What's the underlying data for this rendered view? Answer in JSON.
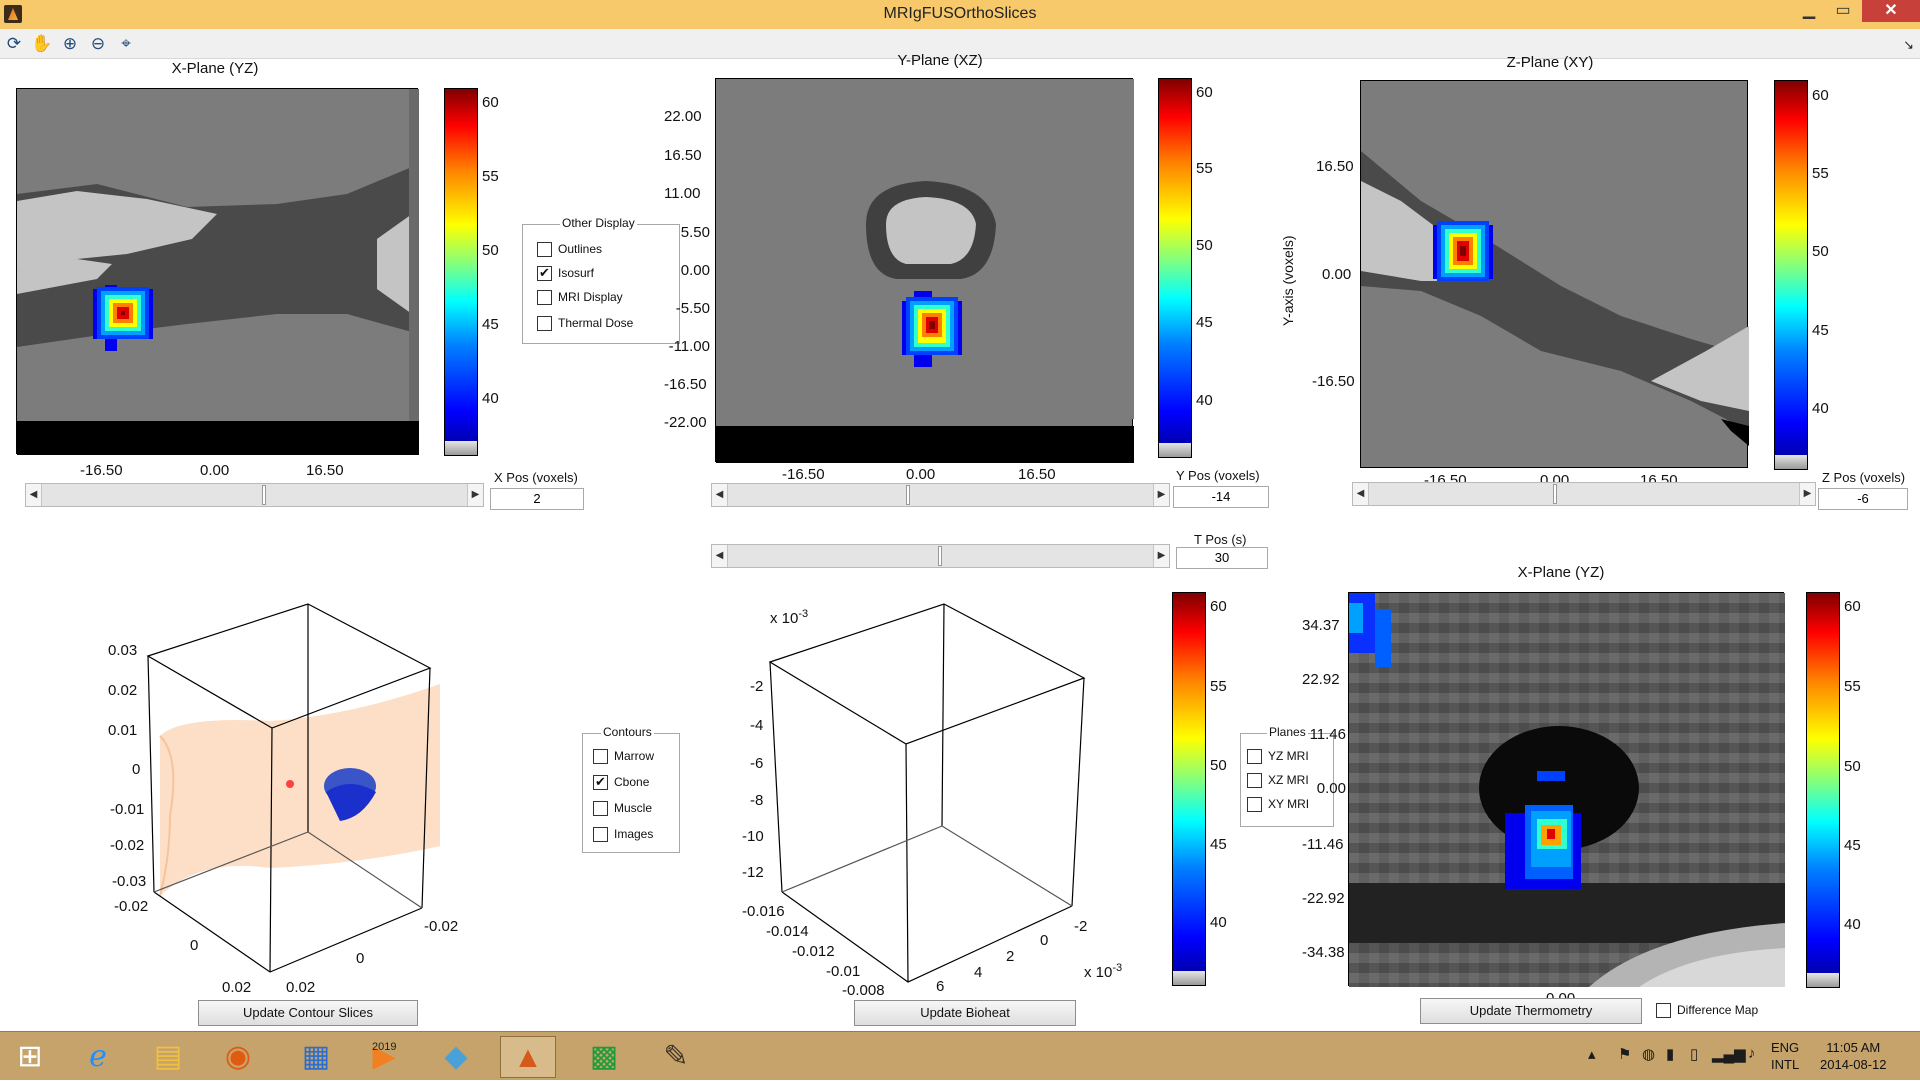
{
  "window": {
    "title": "MRIgFUSOrthoSlices",
    "min_label": "▁",
    "max_label": "▭",
    "close_label": "✕"
  },
  "toolbar": {
    "tools": [
      "rotate-3d-icon",
      "pan-hand-icon",
      "zoom-in-icon",
      "zoom-out-icon",
      "data-cursor-icon"
    ],
    "dock_label": "↘"
  },
  "x_plane": {
    "title": "X-Plane  (YZ)",
    "xticks": [
      "-16.50",
      "0.00",
      "16.50"
    ],
    "colorbar_ticks": [
      "60",
      "55",
      "50",
      "45",
      "40"
    ],
    "pos_label": "X Pos (voxels)",
    "pos_value": "2"
  },
  "y_plane": {
    "title": "Y-Plane  (XZ)",
    "yticks": [
      "22.00",
      "16.50",
      "11.00",
      "5.50",
      "0.00",
      "-5.50",
      "-11.00",
      "-16.50",
      "-22.00"
    ],
    "xticks": [
      "-16.50",
      "0.00",
      "16.50"
    ],
    "colorbar_ticks": [
      "60",
      "55",
      "50",
      "45",
      "40"
    ],
    "pos_label": "Y Pos (voxels)",
    "pos_value": "-14"
  },
  "z_plane": {
    "title": "Z-Plane  (XY)",
    "yticks": [
      "16.50",
      "0.00",
      "-16.50"
    ],
    "xticks": [
      "-16.50",
      "0.00",
      "16.50"
    ],
    "ylabel": "Y-axis (voxels)",
    "colorbar_ticks": [
      "60",
      "55",
      "50",
      "45",
      "40"
    ],
    "pos_label": "Z Pos (voxels)",
    "pos_value": "-6"
  },
  "time": {
    "label": "T Pos (s)",
    "value": "30"
  },
  "other_display": {
    "title": "Other Display",
    "items": [
      {
        "label": "Outlines",
        "checked": false
      },
      {
        "label": "Isosurf",
        "checked": true
      },
      {
        "label": "MRI Display",
        "checked": false
      },
      {
        "label": "Thermal Dose",
        "checked": false
      }
    ]
  },
  "contours": {
    "title": "Contours",
    "items": [
      {
        "label": "Marrow",
        "checked": false
      },
      {
        "label": "Cbone",
        "checked": true
      },
      {
        "label": "Muscle",
        "checked": false
      },
      {
        "label": "Images",
        "checked": false
      }
    ]
  },
  "planes": {
    "title": "Planes",
    "items": [
      {
        "label": "YZ MRI",
        "checked": false
      },
      {
        "label": "XZ MRI",
        "checked": false
      },
      {
        "label": "XY MRI",
        "checked": false
      }
    ]
  },
  "contour3d": {
    "zticks": [
      "0.03",
      "0.02",
      "0.01",
      "0",
      "-0.01",
      "-0.02",
      "-0.03"
    ],
    "xticks": [
      "-0.02",
      "0",
      "0.02"
    ],
    "yticks": [
      "0.02",
      "0",
      "-0.02"
    ],
    "button": "Update Contour Slices"
  },
  "bioheat3d": {
    "exponent_label": "x 10",
    "exponent_value": "-3",
    "zticks": [
      "-2",
      "-4",
      "-6",
      "-8",
      "-10",
      "-12"
    ],
    "xticks": [
      "-0.016",
      "-0.014",
      "-0.012",
      "-0.01",
      "-0.008"
    ],
    "yticks": [
      "6",
      "4",
      "2",
      "0",
      "-2"
    ],
    "y_exponent_label": "x 10",
    "y_exponent_value": "-3",
    "button": "Update Bioheat"
  },
  "thermometry": {
    "title": "X-Plane  (YZ)",
    "yticks": [
      "34.37",
      "22.92",
      "11.46",
      "0.00",
      "-11.46",
      "-22.92",
      "-34.38"
    ],
    "xtick": "0.00",
    "colorbar_ticks": [
      "60",
      "55",
      "50",
      "45",
      "40"
    ],
    "button": "Update Thermometry",
    "difference_label": "Difference Map"
  },
  "bioheat_colorbar_ticks": [
    "60",
    "55",
    "50",
    "45",
    "40"
  ],
  "taskbar": {
    "apps": [
      "windows-start-icon",
      "internet-explorer-icon",
      "file-explorer-icon",
      "firefox-icon",
      "wordpad-icon",
      "media-player-icon",
      "notepad-icon",
      "matlab-icon",
      "windows-store-icon",
      "gimp-icon"
    ],
    "media_badge": "2019",
    "lang_1": "ENG",
    "lang_2": "INTL",
    "time": "11:05 AM",
    "date": "2014-08-12"
  }
}
